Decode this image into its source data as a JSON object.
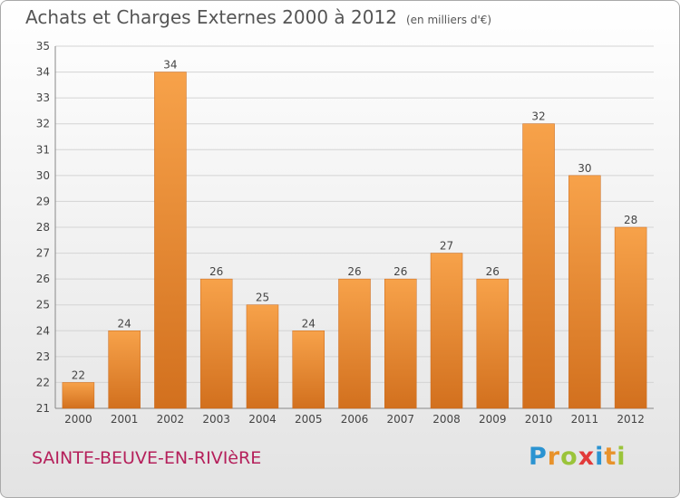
{
  "title": "Achats et Charges Externes 2000 à 2012",
  "subtitle": "(en milliers d'€)",
  "city": "SAINTE-BEUVE-EN-RIVIèRE",
  "logo": "Proxiti",
  "colors": {
    "bar_light": "#f7a24a",
    "bar_dark": "#d2701e",
    "grid": "#d4d4d4",
    "city_text": "#b5205b"
  },
  "chart_data": {
    "type": "bar",
    "categories": [
      "2000",
      "2001",
      "2002",
      "2003",
      "2004",
      "2005",
      "2006",
      "2007",
      "2008",
      "2009",
      "2010",
      "2011",
      "2012"
    ],
    "values": [
      22,
      24,
      34,
      26,
      25,
      24,
      26,
      26,
      27,
      26,
      32,
      30,
      28
    ],
    "ylim": [
      21,
      35
    ],
    "yticks": [
      21,
      22,
      23,
      24,
      25,
      26,
      27,
      28,
      29,
      30,
      31,
      32,
      33,
      34,
      35
    ],
    "grid": true,
    "xlabel": "",
    "ylabel": ""
  }
}
